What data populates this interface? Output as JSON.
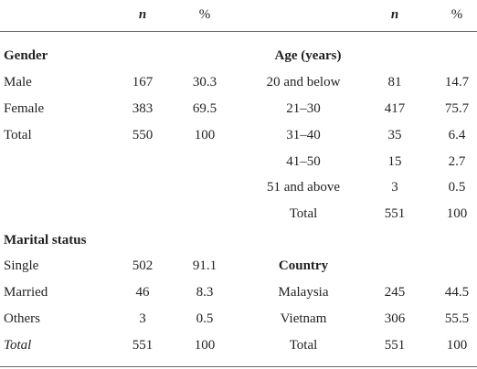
{
  "header": {
    "n": "n",
    "pct": "%"
  },
  "left": {
    "gender": {
      "title": "Gender",
      "rows": [
        {
          "label": "Male",
          "n": "167",
          "pct": "30.3"
        },
        {
          "label": "Female",
          "n": "383",
          "pct": "69.5"
        },
        {
          "label": "Total",
          "n": "550",
          "pct": "100"
        }
      ]
    },
    "marital": {
      "title": "Marital status",
      "rows": [
        {
          "label": "Single",
          "n": "502",
          "pct": "91.1"
        },
        {
          "label": "Married",
          "n": "46",
          "pct": "8.3"
        },
        {
          "label": "Others",
          "n": "3",
          "pct": "0.5"
        },
        {
          "label": "Total",
          "n": "551",
          "pct": "100"
        }
      ]
    }
  },
  "right": {
    "age": {
      "title": "Age (years)",
      "rows": [
        {
          "label": "20 and below",
          "n": "81",
          "pct": "14.7"
        },
        {
          "label": "21–30",
          "n": "417",
          "pct": "75.7"
        },
        {
          "label": "31–40",
          "n": "35",
          "pct": "6.4"
        },
        {
          "label": "41–50",
          "n": "15",
          "pct": "2.7"
        },
        {
          "label": "51 and above",
          "n": "3",
          "pct": "0.5"
        },
        {
          "label": "Total",
          "n": "551",
          "pct": "100"
        }
      ]
    },
    "country": {
      "title": "Country",
      "rows": [
        {
          "label": "Malaysia",
          "n": "245",
          "pct": "44.5"
        },
        {
          "label": "Vietnam",
          "n": "306",
          "pct": "55.5"
        },
        {
          "label": "Total",
          "n": "551",
          "pct": "100"
        }
      ]
    }
  }
}
